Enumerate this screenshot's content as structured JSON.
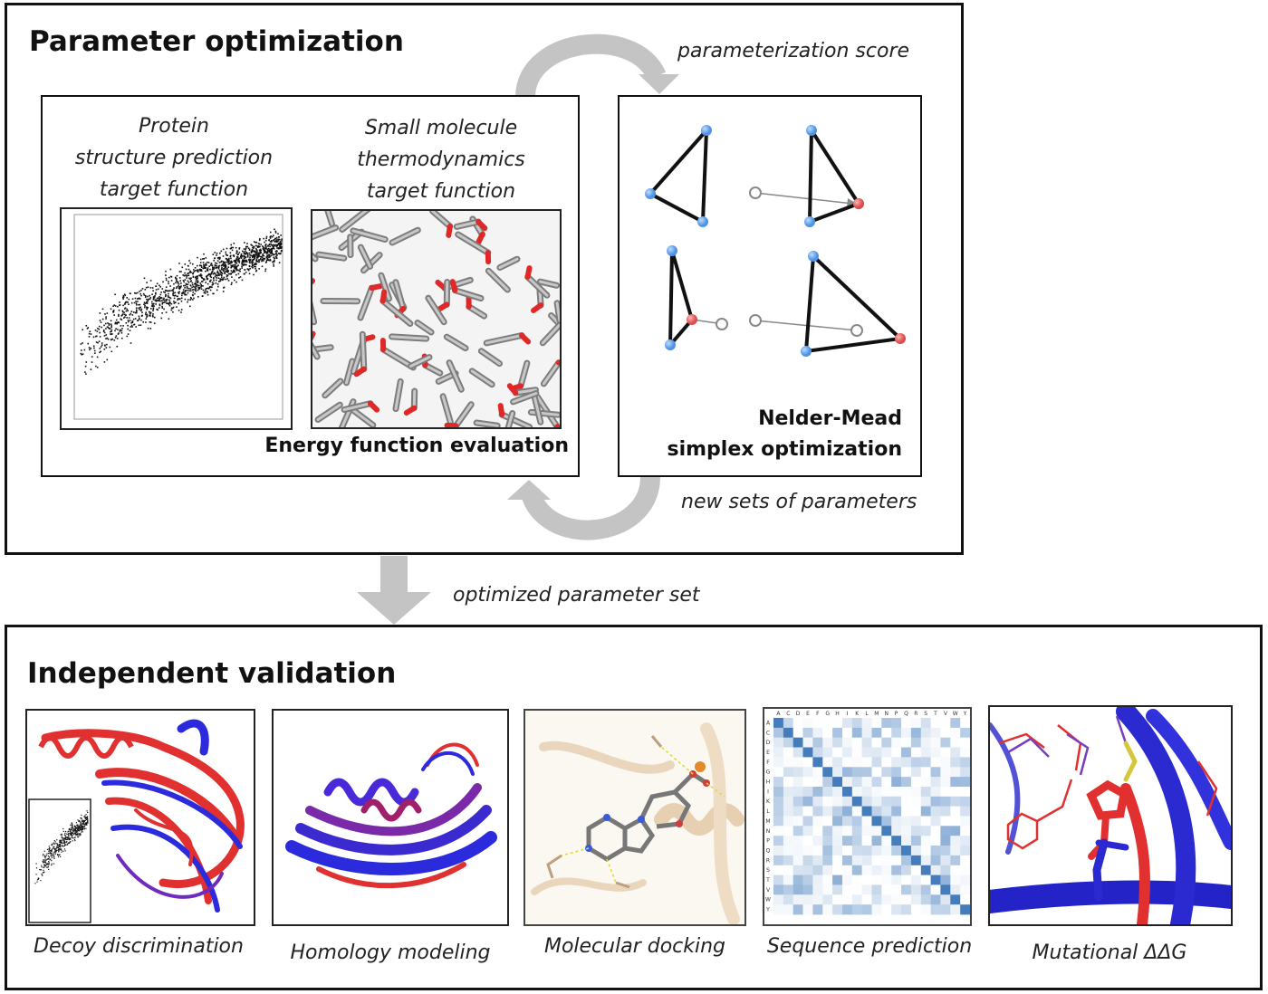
{
  "optimization": {
    "title": "Parameter optimization",
    "loop_top_label": "parameterization score",
    "loop_bottom_label": "new sets of parameters",
    "protein_label_line1": "Protein",
    "protein_label_line2": "structure prediction",
    "protein_label_line3": "target function",
    "small_mol_label_line1": "Small molecule",
    "small_mol_label_line2": "thermodynamics",
    "small_mol_label_line3": "target function",
    "energy_eval_label": "Energy function evaluation",
    "nm_label_line1": "Nelder-Mead",
    "nm_label_line2": "simplex optimization"
  },
  "transfer_label": "optimized parameter set",
  "validation": {
    "title": "Independent validation",
    "panels": [
      {
        "caption": "Decoy discrimination"
      },
      {
        "caption": "Homology modeling"
      },
      {
        "caption": "Molecular docking"
      },
      {
        "caption": "Sequence prediction"
      },
      {
        "caption": "Mutational ΔΔG"
      }
    ],
    "matrix_letters": "ACDEFGHIKLMNPQRSTVWY"
  },
  "colors": {
    "arrow_gray": "#c4c4c4",
    "vertex_blue": "#5b9ee8",
    "vertex_red": "#e05a5a",
    "protein_red": "#e03030",
    "protein_blue": "#2b2bdd",
    "heat_blue": "#2f6db5"
  }
}
